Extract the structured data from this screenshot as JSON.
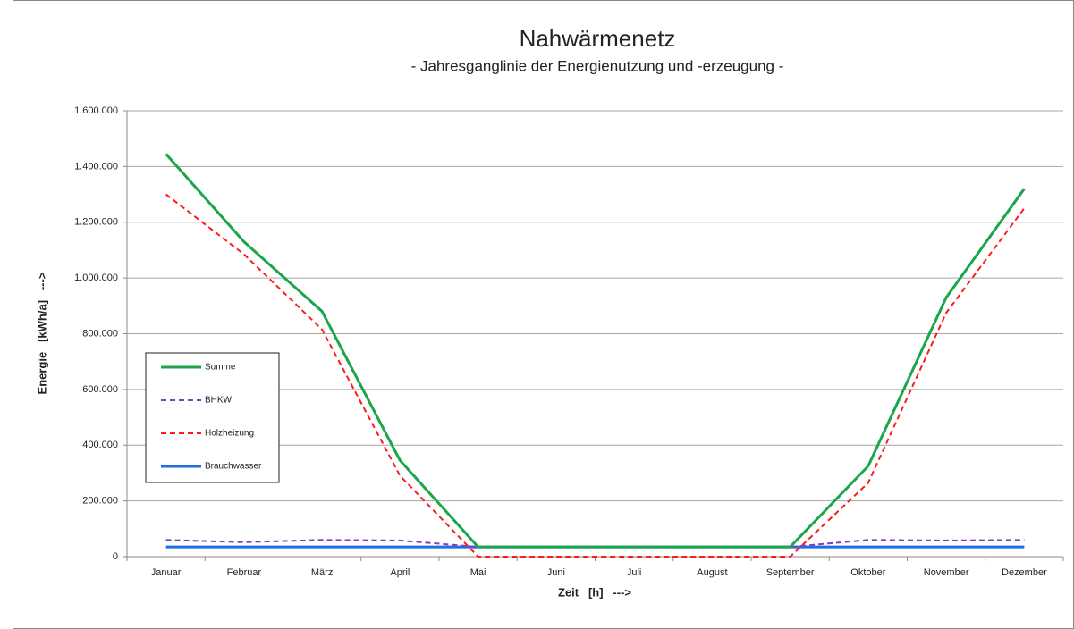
{
  "chart_data": {
    "type": "line",
    "title": "Nahwärmenetz",
    "subtitle": "- Jahresganglinie der Energienutzung und -erzeugung -",
    "x_label": "Zeit   [h]   --->",
    "y_label": "Energie   [kWh/a]   --->",
    "categories": [
      "Januar",
      "Februar",
      "März",
      "April",
      "Mai",
      "Juni",
      "Juli",
      "August",
      "September",
      "Oktober",
      "November",
      "Dezember"
    ],
    "series": [
      {
        "name": "Summe",
        "color": "#1ca54a",
        "dashed": false,
        "values": [
          1445000,
          1130000,
          880000,
          345000,
          35000,
          35000,
          35000,
          35000,
          35000,
          325000,
          930000,
          1320000
        ]
      },
      {
        "name": "BHKW",
        "color": "#7b3fc4",
        "dashed": true,
        "values": [
          60000,
          52000,
          60000,
          58000,
          35000,
          35000,
          35000,
          35000,
          35000,
          60000,
          58000,
          60000
        ]
      },
      {
        "name": "Holzheizung",
        "color": "#ff1a1a",
        "dashed": true,
        "values": [
          1300000,
          1085000,
          815000,
          290000,
          0,
          0,
          0,
          0,
          0,
          265000,
          875000,
          1250000
        ]
      },
      {
        "name": "Brauchwasser",
        "color": "#1f6fe0",
        "dashed": false,
        "values": [
          35000,
          35000,
          35000,
          35000,
          35000,
          35000,
          35000,
          35000,
          35000,
          35000,
          35000,
          35000
        ]
      }
    ],
    "ylim": [
      0,
      1600000
    ],
    "yticks": [
      0,
      {
        "value": 200000,
        "label": "200.000"
      },
      {
        "value": 400000,
        "label": "400.000"
      },
      {
        "value": 600000,
        "label": "600.000"
      },
      {
        "value": 800000,
        "label": "800.000"
      },
      {
        "value": 1000000,
        "label": "1.000.000"
      },
      {
        "value": 1200000,
        "label": "1.200.000"
      },
      {
        "value": 1400000,
        "label": "1.400.000"
      },
      {
        "value": 1600000,
        "label": "1.600.000"
      }
    ],
    "grid": true,
    "legend": "left"
  }
}
